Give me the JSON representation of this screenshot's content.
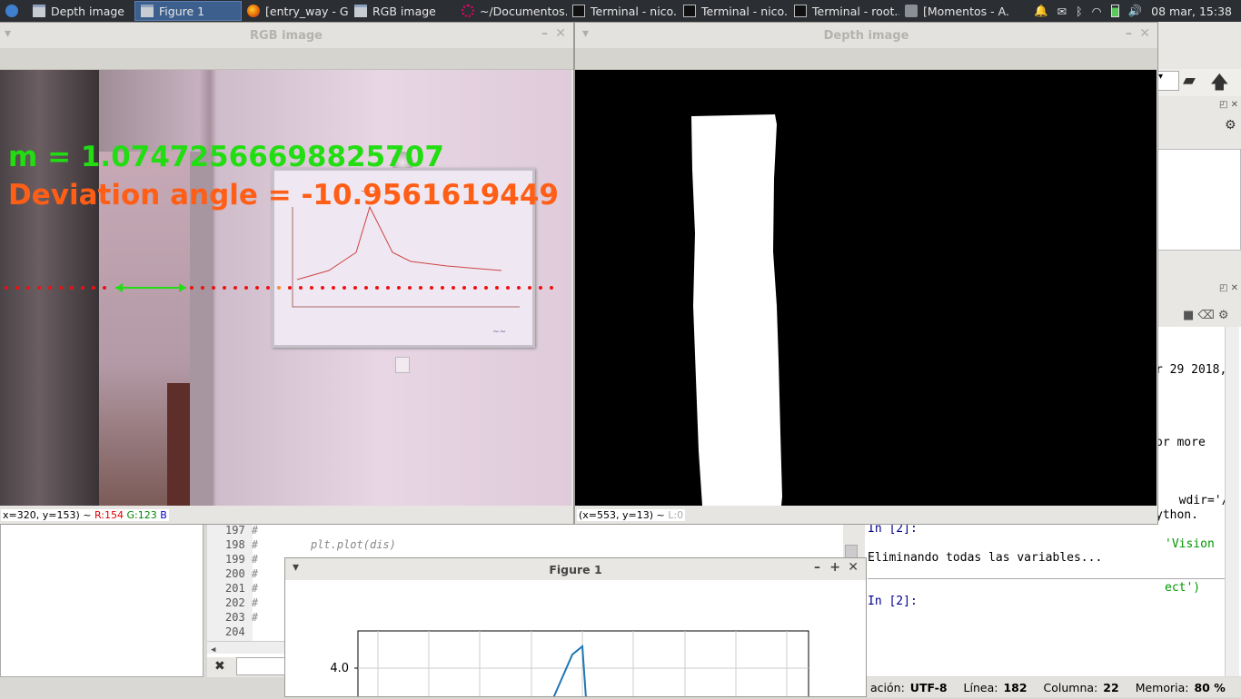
{
  "taskbar": {
    "items": [
      {
        "label": "Depth image",
        "icon": "window-icon",
        "active": false
      },
      {
        "label": "Figure 1",
        "icon": "window-icon",
        "active": true
      },
      {
        "label": "[entry_way - G...",
        "icon": "firefox-icon",
        "active": false
      },
      {
        "label": "RGB image",
        "icon": "window-icon",
        "active": false
      },
      {
        "label": "~/Documentos...",
        "icon": "spyder-icon",
        "active": false
      },
      {
        "label": "Terminal - nico...",
        "icon": "terminal-icon",
        "active": false
      },
      {
        "label": "Terminal - nico...",
        "icon": "terminal-icon",
        "active": false
      },
      {
        "label": "Terminal - root...",
        "icon": "terminal-icon",
        "active": false
      },
      {
        "label": "[Momentos - A...",
        "icon": "folder-icon",
        "active": false
      }
    ],
    "clock": "08 mar, 15:38"
  },
  "rgb_window": {
    "title": "RGB image",
    "overlay_m": "m = 1.07472566698825707",
    "overlay_angle": "Deviation angle = -10.9561619449",
    "status": {
      "coords": "x=320, y=153) ~",
      "r": "R:154",
      "g": "G:123",
      "b": "B"
    }
  },
  "depth_window": {
    "title": "Depth image",
    "status": {
      "coords": "(x=553, y=13) ~",
      "l": "L:0"
    }
  },
  "console": {
    "lines": [
      "r 29 2018,",
      "",
      "or more",
      "",
      "ython.",
      "",
      "",
      "  wdir='/",
      "'Vision",
      "ect')"
    ],
    "prompt1": "In [2]:",
    "message": "Eliminando todas las variables...",
    "prompt2": "In [2]:"
  },
  "editor": {
    "lines": [
      {
        "num": "197",
        "code": "#"
      },
      {
        "num": "198",
        "code": "#        plt.plot(dis)"
      },
      {
        "num": "199",
        "code": "#"
      },
      {
        "num": "200",
        "code": "#"
      },
      {
        "num": "201",
        "code": "#"
      },
      {
        "num": "202",
        "code": "#"
      },
      {
        "num": "203",
        "code": "#"
      },
      {
        "num": "204",
        "code": ""
      }
    ]
  },
  "statusbar": {
    "encoding_label": "ación:",
    "encoding": "UTF-8",
    "line_label": "Línea:",
    "line": "182",
    "col_label": "Columna:",
    "col": "22",
    "mem_label": "Memoria:",
    "mem": "80 %"
  },
  "figure": {
    "title": "Figure 1",
    "ytick": "4.0"
  },
  "colors": {
    "accent": "#3d5f8e",
    "green_text": "#22dd11",
    "orange_text": "#ff5e17",
    "line": "#1f77b4"
  }
}
